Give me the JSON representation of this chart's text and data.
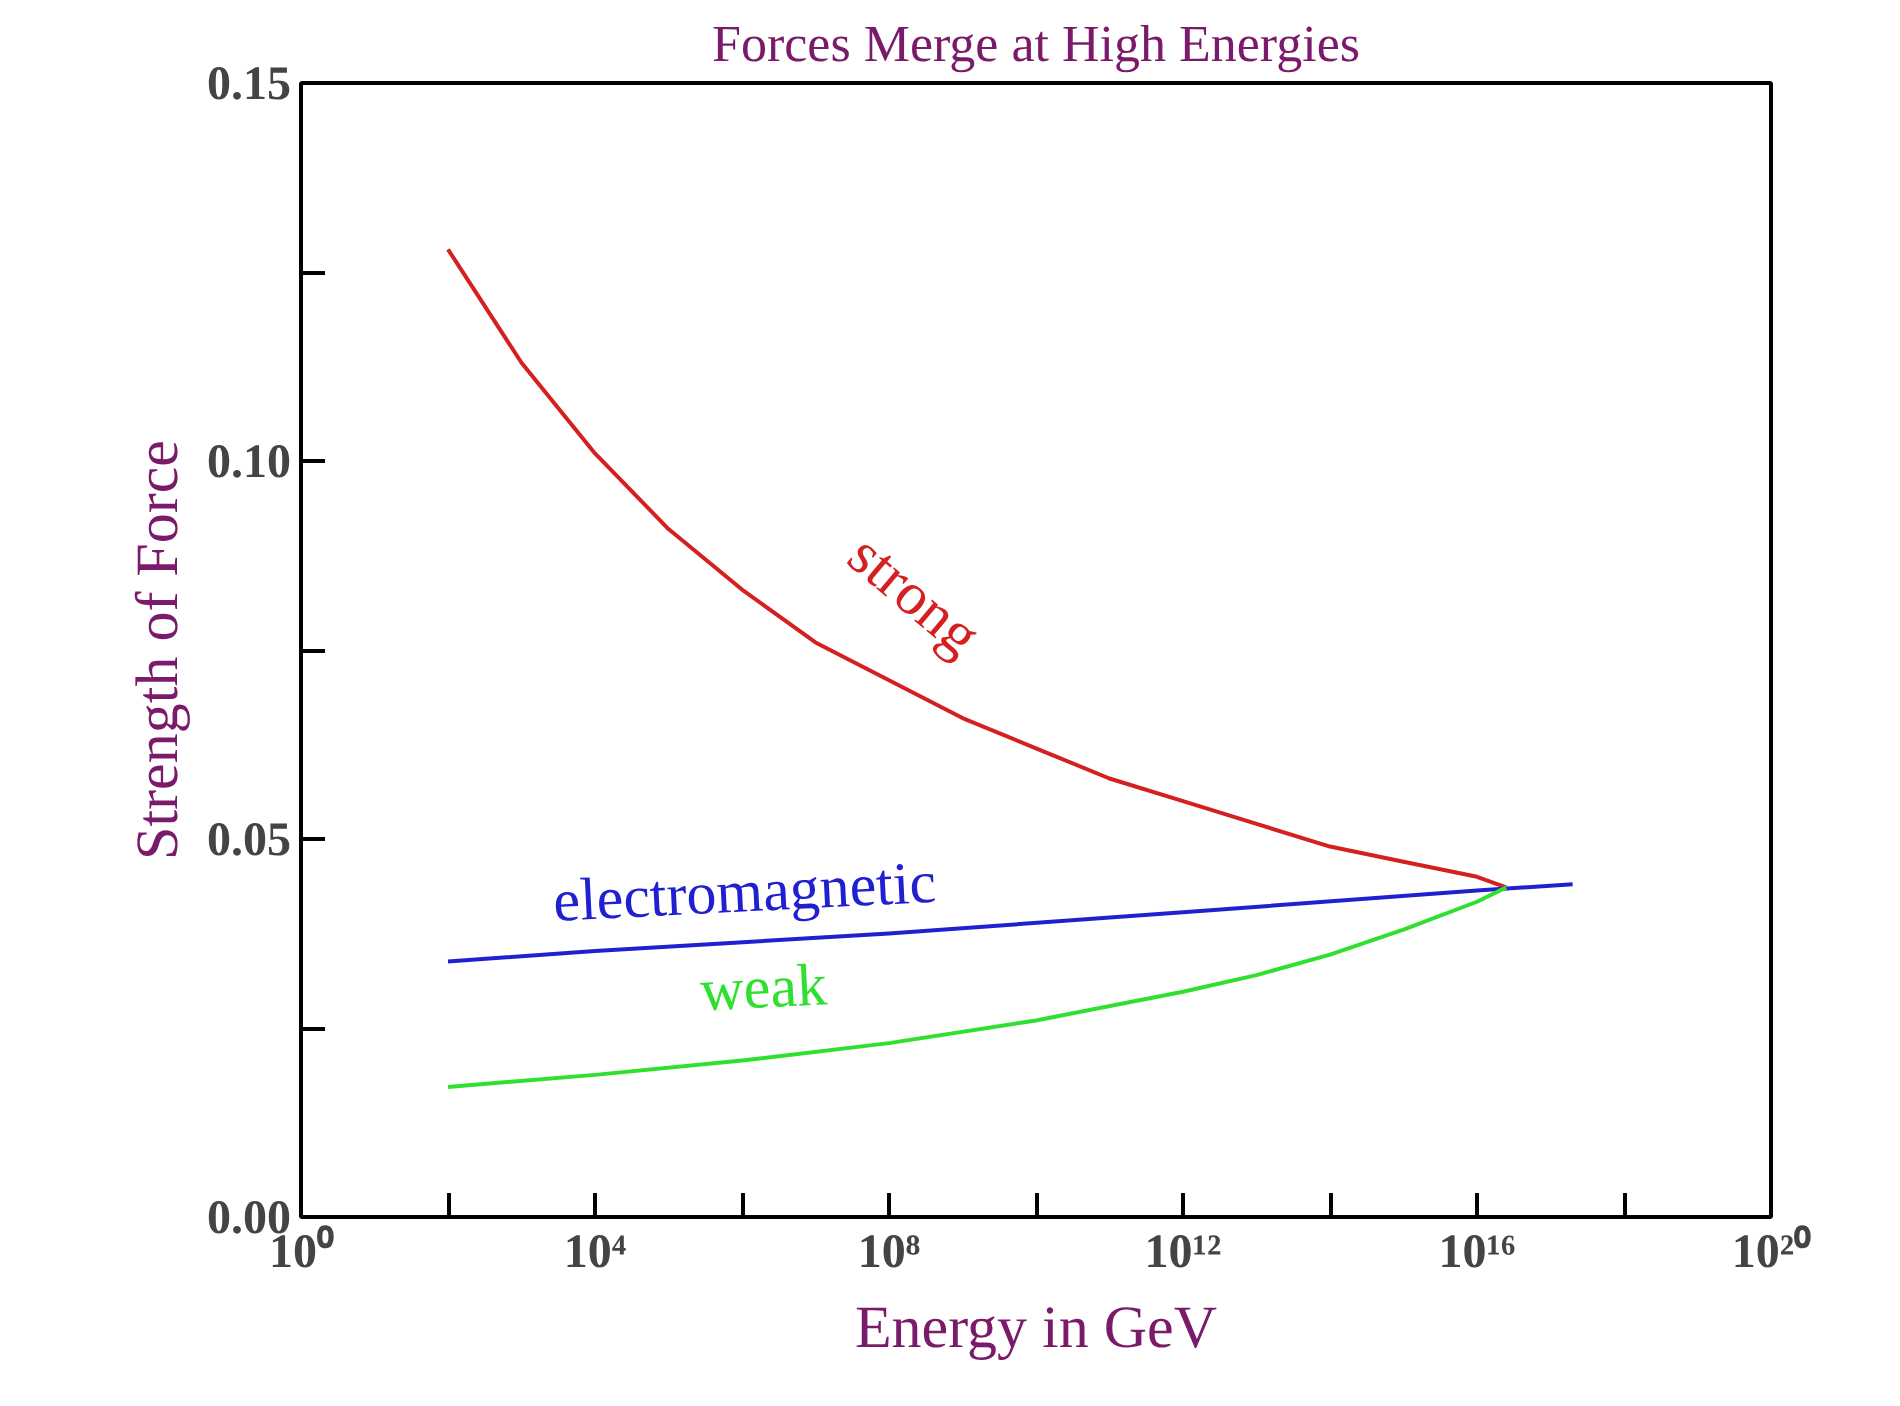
{
  "chart_data": {
    "type": "line",
    "title": "Forces Merge at High Energies",
    "xlabel": "Energy in GeV",
    "ylabel": "Strength of Force",
    "log": "x",
    "xlim": [
      1,
      1e+20
    ],
    "ylim": [
      0,
      0.15
    ],
    "xticks": [
      {
        "value": 1,
        "label": "10⁰"
      },
      {
        "value": 100,
        "label": null
      },
      {
        "value": 10000.0,
        "label": "10⁴"
      },
      {
        "value": 1000000.0,
        "label": null
      },
      {
        "value": 100000000.0,
        "label": "10⁸"
      },
      {
        "value": 10000000000.0,
        "label": null
      },
      {
        "value": 1000000000000.0,
        "label": "10¹²"
      },
      {
        "value": 100000000000000.0,
        "label": null
      },
      {
        "value": 1e+16,
        "label": "10¹⁶"
      },
      {
        "value": 1e+18,
        "label": null
      },
      {
        "value": 1e+20,
        "label": "10²⁰"
      }
    ],
    "yticks": [
      {
        "value": 0,
        "label": "0.00"
      },
      {
        "value": 0.025,
        "label": null
      },
      {
        "value": 0.05,
        "label": "0.05"
      },
      {
        "value": 0.075,
        "label": null
      },
      {
        "value": 0.1,
        "label": "0.10"
      },
      {
        "value": 0.125,
        "label": null
      },
      {
        "value": 0.15,
        "label": "0.15"
      }
    ],
    "grid": false,
    "marker": "none",
    "line_style": "solid",
    "series": [
      {
        "name": "strong",
        "color": "#d42020",
        "x": [
          100,
          1000.0,
          10000.0,
          100000.0,
          1000000.0,
          10000000.0,
          100000000.0,
          1000000000.0,
          10000000000.0,
          100000000000.0,
          1000000000000.0,
          10000000000000.0,
          100000000000000.0,
          1000000000000000.0,
          1e+16,
          2.5e+16
        ],
        "values": [
          0.128,
          0.113,
          0.101,
          0.091,
          0.083,
          0.076,
          0.071,
          0.066,
          0.062,
          0.058,
          0.055,
          0.052,
          0.049,
          0.047,
          0.045,
          0.0436
        ]
      },
      {
        "name": "electromagnetic",
        "color": "#2020d0",
        "x": [
          100,
          10000.0,
          100000000.0,
          1000000000000.0,
          1e+16,
          2e+17
        ],
        "values": [
          0.0338,
          0.0352,
          0.0375,
          0.0403,
          0.0432,
          0.044
        ]
      },
      {
        "name": "weak",
        "color": "#30e030",
        "x": [
          100,
          10000.0,
          1000000.0,
          100000000.0,
          10000000000.0,
          1000000000000.0,
          10000000000000.0,
          100000000000000.0,
          1000000000000000.0,
          1e+16,
          2.5e+16
        ],
        "values": [
          0.0172,
          0.0188,
          0.0207,
          0.023,
          0.026,
          0.0298,
          0.032,
          0.0347,
          0.038,
          0.0417,
          0.0436
        ]
      }
    ]
  }
}
